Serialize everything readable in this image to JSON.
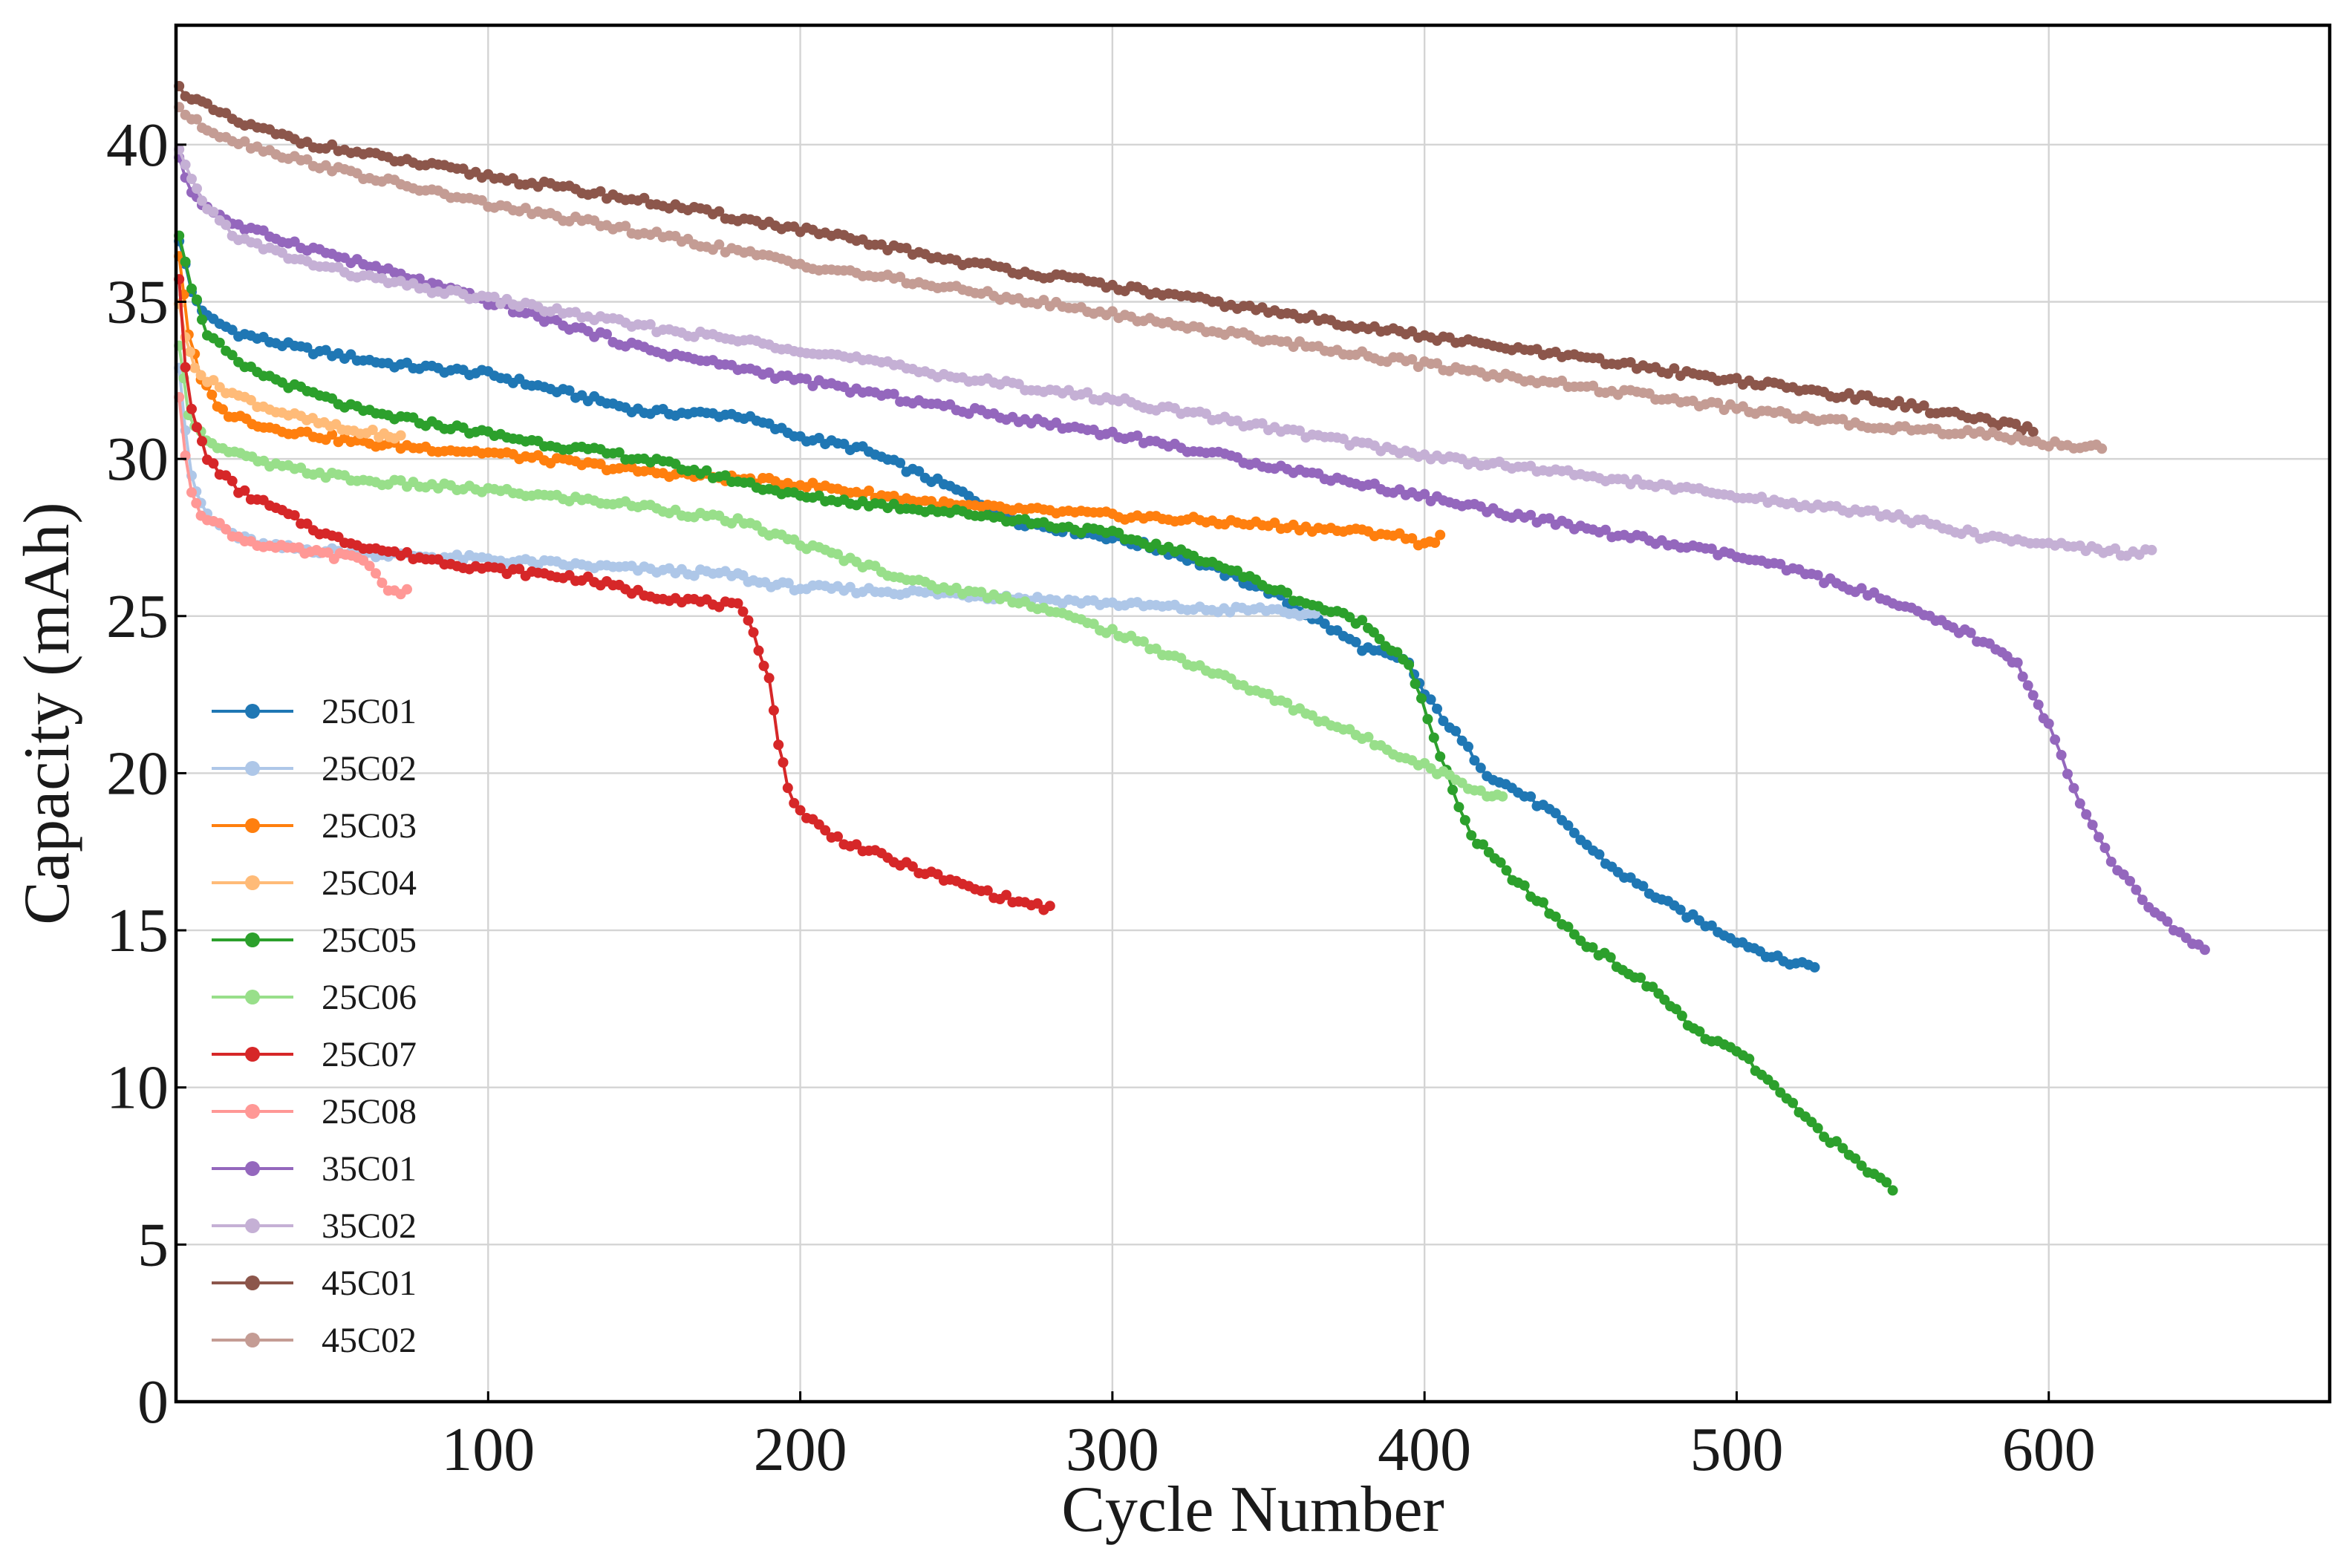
{
  "chart_data": {
    "type": "line",
    "title": "",
    "xlabel": "Cycle Number",
    "ylabel": "Capacity (mAh)",
    "xlim": [
      0,
      690
    ],
    "ylim": [
      0,
      43.8
    ],
    "grid": true,
    "legend_position": "lower-left",
    "x_ticks": [
      100,
      200,
      300,
      400,
      500,
      600
    ],
    "y_ticks": [
      0,
      5,
      10,
      15,
      20,
      25,
      30,
      35,
      40
    ],
    "series": [
      {
        "name": "25C01",
        "color": "#1f77b4",
        "points": [
          [
            1,
            37
          ],
          [
            5,
            35.3
          ],
          [
            10,
            34.5
          ],
          [
            20,
            34
          ],
          [
            40,
            33.5
          ],
          [
            70,
            33
          ],
          [
            100,
            32.7
          ],
          [
            150,
            31.5
          ],
          [
            180,
            31.4
          ],
          [
            200,
            30.7
          ],
          [
            220,
            30.3
          ],
          [
            250,
            29
          ],
          [
            270,
            28
          ],
          [
            300,
            27.5
          ],
          [
            320,
            27
          ],
          [
            350,
            25.8
          ],
          [
            380,
            24
          ],
          [
            395,
            23.5
          ],
          [
            400,
            22.5
          ],
          [
            420,
            20
          ],
          [
            440,
            18.8
          ],
          [
            460,
            17
          ],
          [
            480,
            15.7
          ],
          [
            500,
            14.7
          ],
          [
            515,
            14
          ],
          [
            525,
            13.9
          ]
        ]
      },
      {
        "name": "25C02",
        "color": "#aec7e8",
        "points": [
          [
            1,
            33
          ],
          [
            3,
            31
          ],
          [
            5,
            29.5
          ],
          [
            8,
            28.5
          ],
          [
            12,
            28
          ],
          [
            20,
            27.5
          ],
          [
            30,
            27.2
          ],
          [
            60,
            27
          ],
          [
            100,
            26.8
          ],
          [
            130,
            26.6
          ],
          [
            180,
            26.3
          ],
          [
            185,
            26.1
          ],
          [
            200,
            25.9
          ],
          [
            250,
            25.7
          ],
          [
            300,
            25.4
          ],
          [
            330,
            25.2
          ],
          [
            355,
            25.2
          ],
          [
            360,
            24.9
          ],
          [
            365,
            25.1
          ]
        ]
      },
      {
        "name": "25C03",
        "color": "#ff7f0e",
        "points": [
          [
            1,
            36.5
          ],
          [
            4,
            34
          ],
          [
            8,
            32.5
          ],
          [
            15,
            31.5
          ],
          [
            30,
            31
          ],
          [
            60,
            30.5
          ],
          [
            100,
            30.2
          ],
          [
            150,
            29.6
          ],
          [
            200,
            29.2
          ],
          [
            250,
            28.5
          ],
          [
            300,
            28.2
          ],
          [
            350,
            27.9
          ],
          [
            390,
            27.6
          ],
          [
            400,
            27.3
          ],
          [
            405,
            27.5
          ]
        ]
      },
      {
        "name": "25C04",
        "color": "#ffbb78",
        "points": [
          [
            1,
            35
          ],
          [
            3,
            33.8
          ],
          [
            6,
            33
          ],
          [
            10,
            32.5
          ],
          [
            20,
            32
          ],
          [
            30,
            31.6
          ],
          [
            40,
            31.3
          ],
          [
            55,
            30.9
          ],
          [
            65,
            30.8
          ],
          [
            70,
            30.6
          ],
          [
            72,
            30.8
          ]
        ]
      },
      {
        "name": "25C05",
        "color": "#2ca02c",
        "points": [
          [
            1,
            37.2
          ],
          [
            5,
            35.5
          ],
          [
            10,
            34
          ],
          [
            20,
            33
          ],
          [
            40,
            32.2
          ],
          [
            60,
            31.5
          ],
          [
            100,
            30.8
          ],
          [
            130,
            30.3
          ],
          [
            150,
            30
          ],
          [
            180,
            29.3
          ],
          [
            200,
            28.8
          ],
          [
            230,
            28.5
          ],
          [
            260,
            28.2
          ],
          [
            300,
            27.6
          ],
          [
            330,
            26.8
          ],
          [
            360,
            25.5
          ],
          [
            380,
            24.8
          ],
          [
            395,
            23.5
          ],
          [
            405,
            20.5
          ],
          [
            415,
            18
          ],
          [
            430,
            16.5
          ],
          [
            450,
            14.7
          ],
          [
            475,
            13
          ],
          [
            490,
            11.5
          ],
          [
            500,
            11.2
          ],
          [
            520,
            9.2
          ],
          [
            540,
            7.5
          ],
          [
            550,
            6.8
          ]
        ]
      },
      {
        "name": "25C06",
        "color": "#98df8a",
        "points": [
          [
            1,
            33.5
          ],
          [
            4,
            31.5
          ],
          [
            8,
            30.8
          ],
          [
            15,
            30.3
          ],
          [
            30,
            29.8
          ],
          [
            60,
            29.3
          ],
          [
            100,
            29
          ],
          [
            150,
            28.5
          ],
          [
            180,
            28
          ],
          [
            200,
            27.3
          ],
          [
            240,
            26
          ],
          [
            270,
            25.5
          ],
          [
            300,
            24.5
          ],
          [
            330,
            23.3
          ],
          [
            360,
            22
          ],
          [
            390,
            20.7
          ],
          [
            410,
            19.8
          ],
          [
            420,
            19.3
          ],
          [
            425,
            19.3
          ]
        ]
      },
      {
        "name": "25C07",
        "color": "#d62728",
        "points": [
          [
            1,
            35.8
          ],
          [
            3,
            33
          ],
          [
            5,
            31.5
          ],
          [
            10,
            30
          ],
          [
            20,
            29
          ],
          [
            30,
            28.5
          ],
          [
            50,
            27.5
          ],
          [
            70,
            27
          ],
          [
            100,
            26.5
          ],
          [
            130,
            26.2
          ],
          [
            150,
            25.7
          ],
          [
            180,
            25.3
          ],
          [
            185,
            24.5
          ],
          [
            190,
            23
          ],
          [
            193,
            21
          ],
          [
            196,
            19.5
          ],
          [
            200,
            18.8
          ],
          [
            210,
            18
          ],
          [
            230,
            17.2
          ],
          [
            250,
            16.5
          ],
          [
            270,
            15.9
          ],
          [
            280,
            15.7
          ]
        ]
      },
      {
        "name": "25C08",
        "color": "#ff9896",
        "points": [
          [
            1,
            32
          ],
          [
            3,
            30
          ],
          [
            5,
            29
          ],
          [
            8,
            28.3
          ],
          [
            12,
            28
          ],
          [
            20,
            27.5
          ],
          [
            30,
            27.2
          ],
          [
            45,
            27
          ],
          [
            60,
            26.8
          ],
          [
            64,
            26.4
          ],
          [
            66,
            26
          ],
          [
            70,
            25.8
          ],
          [
            74,
            25.8
          ]
        ]
      },
      {
        "name": "35C01",
        "color": "#9467bd",
        "points": [
          [
            1,
            39.5
          ],
          [
            5,
            38.5
          ],
          [
            10,
            38
          ],
          [
            20,
            37.4
          ],
          [
            40,
            36.8
          ],
          [
            60,
            36.2
          ],
          [
            100,
            35
          ],
          [
            150,
            33.5
          ],
          [
            200,
            32.5
          ],
          [
            250,
            31.6
          ],
          [
            300,
            30.8
          ],
          [
            350,
            29.8
          ],
          [
            400,
            28.8
          ],
          [
            450,
            27.8
          ],
          [
            500,
            26.9
          ],
          [
            520,
            26.4
          ],
          [
            540,
            25.8
          ],
          [
            560,
            25
          ],
          [
            575,
            24.4
          ],
          [
            585,
            23.8
          ],
          [
            590,
            23.5
          ],
          [
            595,
            22.5
          ],
          [
            600,
            21.5
          ],
          [
            610,
            19
          ],
          [
            620,
            17.2
          ],
          [
            630,
            16
          ],
          [
            640,
            15
          ],
          [
            650,
            14.4
          ]
        ]
      },
      {
        "name": "35C02",
        "color": "#c5b0d5",
        "points": [
          [
            1,
            39.8
          ],
          [
            5,
            38.8
          ],
          [
            10,
            38
          ],
          [
            20,
            37
          ],
          [
            40,
            36.3
          ],
          [
            60,
            35.8
          ],
          [
            80,
            35.4
          ],
          [
            100,
            35.1
          ],
          [
            150,
            34.2
          ],
          [
            200,
            33.5
          ],
          [
            250,
            32.6
          ],
          [
            300,
            31.9
          ],
          [
            350,
            31
          ],
          [
            400,
            30.1
          ],
          [
            450,
            29.5
          ],
          [
            500,
            28.8
          ],
          [
            550,
            28.2
          ],
          [
            580,
            27.5
          ],
          [
            610,
            27.2
          ],
          [
            625,
            27
          ],
          [
            633,
            27.1
          ]
        ]
      },
      {
        "name": "45C01",
        "color": "#8c564b",
        "points": [
          [
            1,
            41.8
          ],
          [
            5,
            41.5
          ],
          [
            10,
            41.2
          ],
          [
            20,
            40.7
          ],
          [
            40,
            40.1
          ],
          [
            60,
            39.7
          ],
          [
            100,
            39
          ],
          [
            150,
            38.2
          ],
          [
            200,
            37.3
          ],
          [
            250,
            36.3
          ],
          [
            300,
            35.5
          ],
          [
            350,
            34.7
          ],
          [
            400,
            33.9
          ],
          [
            450,
            33.2
          ],
          [
            500,
            32.5
          ],
          [
            550,
            31.8
          ],
          [
            580,
            31.2
          ],
          [
            595,
            30.9
          ]
        ]
      },
      {
        "name": "45C02",
        "color": "#c49c94",
        "points": [
          [
            1,
            41.2
          ],
          [
            5,
            40.8
          ],
          [
            10,
            40.5
          ],
          [
            20,
            40.1
          ],
          [
            40,
            39.5
          ],
          [
            60,
            39
          ],
          [
            100,
            38.1
          ],
          [
            150,
            37.2
          ],
          [
            200,
            36.2
          ],
          [
            250,
            35.4
          ],
          [
            300,
            34.6
          ],
          [
            350,
            33.8
          ],
          [
            400,
            33
          ],
          [
            450,
            32.3
          ],
          [
            500,
            31.6
          ],
          [
            530,
            31.2
          ],
          [
            550,
            31
          ],
          [
            580,
            30.8
          ],
          [
            600,
            30.5
          ],
          [
            610,
            30.4
          ],
          [
            617,
            30.4
          ]
        ]
      }
    ]
  }
}
